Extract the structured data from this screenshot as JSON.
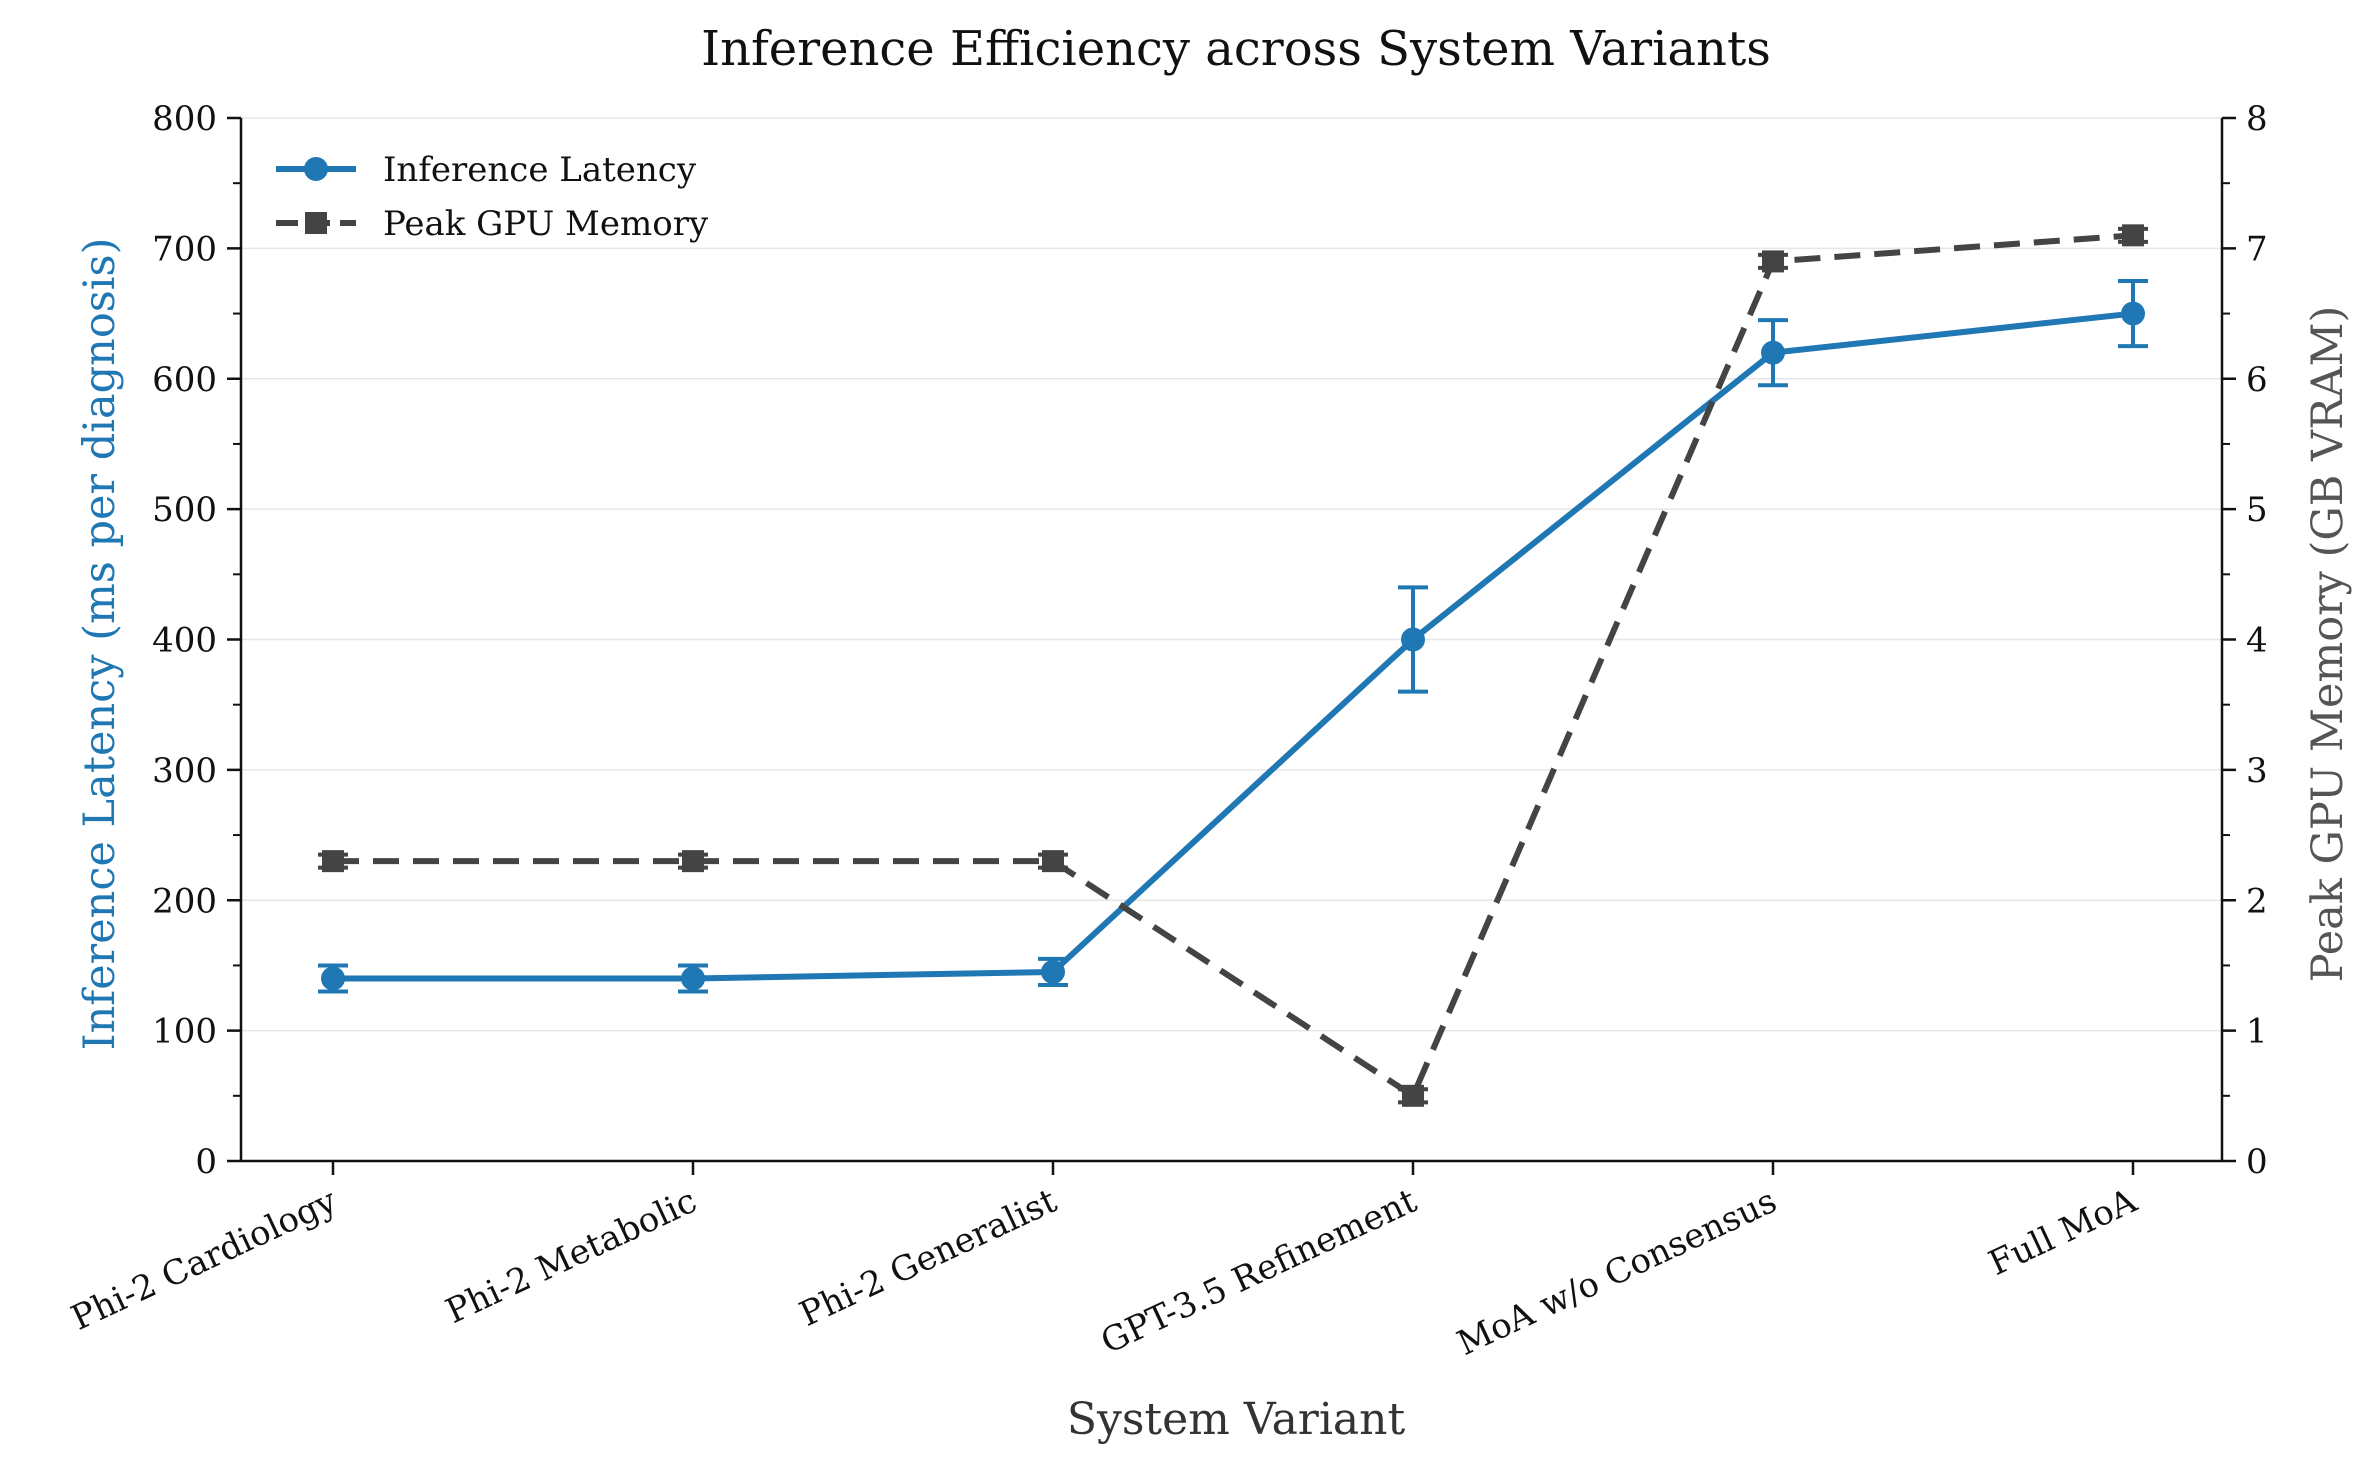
{
  "chart_data": {
    "type": "line",
    "title": "Inference Efficiency across System Variants",
    "xlabel": "System Variant",
    "ylabel_left": "Inference Latency (ms per diagnosis)",
    "ylabel_right": "Peak GPU Memory (GB VRAM)",
    "categories": [
      "Phi-2 Cardiology",
      "Phi-2 Metabolic",
      "Phi-2 Generalist",
      "GPT-3.5 Refinement",
      "MoA w/o Consensus",
      "Full MoA"
    ],
    "ylim_left": [
      0,
      800
    ],
    "ylim_right": [
      0,
      8
    ],
    "yticks_left": [
      0,
      100,
      200,
      300,
      400,
      500,
      600,
      700,
      800
    ],
    "yticks_right": [
      0,
      1,
      2,
      3,
      4,
      5,
      6,
      7,
      8
    ],
    "grid": "horizontal",
    "legend_position": "top-left",
    "series": [
      {
        "name": "Inference Latency",
        "axis": "left",
        "values": [
          140,
          140,
          145,
          400,
          620,
          650
        ],
        "errors": [
          10,
          10,
          10,
          40,
          25,
          25
        ],
        "color": "#1f77b4",
        "style": "solid",
        "marker": "circle"
      },
      {
        "name": "Peak GPU Memory",
        "axis": "right",
        "values": [
          2.3,
          2.3,
          2.3,
          0.5,
          6.9,
          7.1
        ],
        "errors": [
          0.05,
          0.05,
          0.05,
          0.05,
          0.05,
          0.05
        ],
        "color": "#444444",
        "style": "dashed",
        "marker": "square"
      }
    ]
  }
}
